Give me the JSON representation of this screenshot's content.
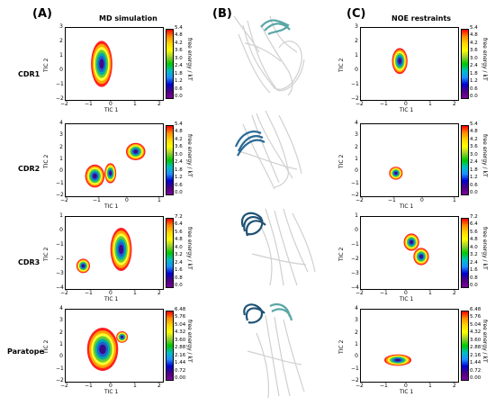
{
  "panels": {
    "a": "(A)",
    "b": "(B)",
    "c": "(C)"
  },
  "column_titles": {
    "md": "MD simulation",
    "noe": "NOE restraints"
  },
  "rows": [
    {
      "label": "CDR1",
      "xticks": [
        "−2",
        "−1",
        "0",
        "1",
        "2"
      ],
      "yticks": [
        "3",
        "2",
        "1",
        "0",
        "−1",
        "−2"
      ],
      "cbar_ticks": [
        "5.4",
        "4.8",
        "4.2",
        "3.6",
        "3.0",
        "2.4",
        "1.8",
        "1.2",
        "0.6",
        "0.0"
      ]
    },
    {
      "label": "CDR2",
      "xticks": [
        "−2",
        "−1",
        "0",
        "1"
      ],
      "yticks": [
        "4",
        "3",
        "2",
        "1",
        "0",
        "−1",
        "−2"
      ],
      "cbar_ticks": [
        "5.4",
        "4.8",
        "4.2",
        "3.6",
        "3.0",
        "2.4",
        "1.8",
        "1.2",
        "0.6",
        "0.0"
      ]
    },
    {
      "label": "CDR3",
      "xticks": [
        "−2",
        "−1",
        "0",
        "1",
        "2"
      ],
      "yticks": [
        "1",
        "0",
        "−1",
        "−2",
        "−3",
        "−4"
      ],
      "cbar_ticks": [
        "7.2",
        "6.4",
        "5.6",
        "4.8",
        "4.0",
        "3.2",
        "2.4",
        "1.6",
        "0.8",
        "0.0"
      ]
    },
    {
      "label": "Paratope",
      "xticks": [
        "−2",
        "−1",
        "0",
        "1",
        "2"
      ],
      "yticks": [
        "4",
        "3",
        "2",
        "1",
        "0",
        "−1",
        "−2"
      ],
      "cbar_ticks": [
        "6.48",
        "5.76",
        "5.04",
        "4.32",
        "3.60",
        "2.88",
        "2.16",
        "1.44",
        "0.72",
        "0.00"
      ]
    }
  ],
  "axes": {
    "xlabel": "TIC 1",
    "ylabel": "TIC 2",
    "cbar_label": "free energy / kT"
  },
  "colors": {
    "highlight_cdr1": "#5aa6a6",
    "highlight_cdr2": "#2a6a96",
    "highlight_cdr3": "#1e5276",
    "protein_gray": "#c8c8c8"
  }
}
